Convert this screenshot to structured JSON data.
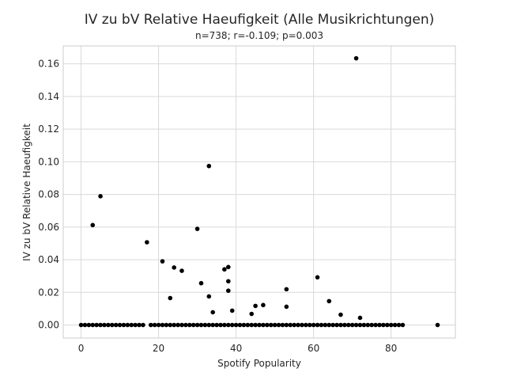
{
  "chart_data": {
    "type": "scatter",
    "title": "IV zu bV Relative Haeufigkeit (Alle Musikrichtungen)",
    "subtitle": "n=738; r=-0.109; p=0.003",
    "xlabel": "Spotify Popularity",
    "ylabel": "IV zu bV Relative Haeufigkeit",
    "xlim": [
      -4.6,
      96.6
    ],
    "ylim": [
      -0.008,
      0.171
    ],
    "xticks": [
      0,
      20,
      40,
      60,
      80
    ],
    "xtick_labels": [
      "0",
      "20",
      "40",
      "60",
      "80"
    ],
    "yticks": [
      0.0,
      0.02,
      0.04,
      0.06,
      0.08,
      0.1,
      0.12,
      0.14,
      0.16
    ],
    "ytick_labels": [
      "0.00",
      "0.02",
      "0.04",
      "0.06",
      "0.08",
      "0.10",
      "0.12",
      "0.14",
      "0.16"
    ],
    "grid": true,
    "marker_color": "#000000",
    "points": [
      {
        "x": 0,
        "y": 0
      },
      {
        "x": 1,
        "y": 0
      },
      {
        "x": 2,
        "y": 0
      },
      {
        "x": 3,
        "y": 0
      },
      {
        "x": 4,
        "y": 0
      },
      {
        "x": 5,
        "y": 0
      },
      {
        "x": 6,
        "y": 0
      },
      {
        "x": 7,
        "y": 0
      },
      {
        "x": 8,
        "y": 0
      },
      {
        "x": 9,
        "y": 0
      },
      {
        "x": 10,
        "y": 0
      },
      {
        "x": 11,
        "y": 0
      },
      {
        "x": 12,
        "y": 0
      },
      {
        "x": 13,
        "y": 0
      },
      {
        "x": 14,
        "y": 0
      },
      {
        "x": 15,
        "y": 0
      },
      {
        "x": 16,
        "y": 0
      },
      {
        "x": 18,
        "y": 0
      },
      {
        "x": 19,
        "y": 0
      },
      {
        "x": 20,
        "y": 0
      },
      {
        "x": 21,
        "y": 0
      },
      {
        "x": 22,
        "y": 0
      },
      {
        "x": 23,
        "y": 0
      },
      {
        "x": 24,
        "y": 0
      },
      {
        "x": 25,
        "y": 0
      },
      {
        "x": 26,
        "y": 0
      },
      {
        "x": 27,
        "y": 0
      },
      {
        "x": 28,
        "y": 0
      },
      {
        "x": 29,
        "y": 0
      },
      {
        "x": 30,
        "y": 0
      },
      {
        "x": 31,
        "y": 0
      },
      {
        "x": 32,
        "y": 0
      },
      {
        "x": 33,
        "y": 0
      },
      {
        "x": 34,
        "y": 0
      },
      {
        "x": 35,
        "y": 0
      },
      {
        "x": 36,
        "y": 0
      },
      {
        "x": 37,
        "y": 0
      },
      {
        "x": 38,
        "y": 0
      },
      {
        "x": 39,
        "y": 0
      },
      {
        "x": 40,
        "y": 0
      },
      {
        "x": 41,
        "y": 0
      },
      {
        "x": 42,
        "y": 0
      },
      {
        "x": 43,
        "y": 0
      },
      {
        "x": 44,
        "y": 0
      },
      {
        "x": 45,
        "y": 0
      },
      {
        "x": 46,
        "y": 0
      },
      {
        "x": 47,
        "y": 0
      },
      {
        "x": 48,
        "y": 0
      },
      {
        "x": 49,
        "y": 0
      },
      {
        "x": 50,
        "y": 0
      },
      {
        "x": 51,
        "y": 0
      },
      {
        "x": 52,
        "y": 0
      },
      {
        "x": 53,
        "y": 0
      },
      {
        "x": 54,
        "y": 0
      },
      {
        "x": 55,
        "y": 0
      },
      {
        "x": 56,
        "y": 0
      },
      {
        "x": 57,
        "y": 0
      },
      {
        "x": 58,
        "y": 0
      },
      {
        "x": 59,
        "y": 0
      },
      {
        "x": 60,
        "y": 0
      },
      {
        "x": 61,
        "y": 0
      },
      {
        "x": 62,
        "y": 0
      },
      {
        "x": 63,
        "y": 0
      },
      {
        "x": 64,
        "y": 0
      },
      {
        "x": 65,
        "y": 0
      },
      {
        "x": 66,
        "y": 0
      },
      {
        "x": 67,
        "y": 0
      },
      {
        "x": 68,
        "y": 0
      },
      {
        "x": 69,
        "y": 0
      },
      {
        "x": 70,
        "y": 0
      },
      {
        "x": 71,
        "y": 0
      },
      {
        "x": 72,
        "y": 0
      },
      {
        "x": 73,
        "y": 0
      },
      {
        "x": 74,
        "y": 0
      },
      {
        "x": 75,
        "y": 0
      },
      {
        "x": 76,
        "y": 0
      },
      {
        "x": 77,
        "y": 0
      },
      {
        "x": 78,
        "y": 0
      },
      {
        "x": 79,
        "y": 0
      },
      {
        "x": 80,
        "y": 0
      },
      {
        "x": 81,
        "y": 0
      },
      {
        "x": 82,
        "y": 0
      },
      {
        "x": 83,
        "y": 0
      },
      {
        "x": 92,
        "y": 0
      },
      {
        "x": 3,
        "y": 0.0612
      },
      {
        "x": 5,
        "y": 0.0789
      },
      {
        "x": 17,
        "y": 0.0507
      },
      {
        "x": 21,
        "y": 0.039
      },
      {
        "x": 23,
        "y": 0.0165
      },
      {
        "x": 24,
        "y": 0.0352
      },
      {
        "x": 26,
        "y": 0.0332
      },
      {
        "x": 30,
        "y": 0.0589
      },
      {
        "x": 31,
        "y": 0.0256
      },
      {
        "x": 33,
        "y": 0.0974
      },
      {
        "x": 33,
        "y": 0.0175
      },
      {
        "x": 34,
        "y": 0.0078
      },
      {
        "x": 37,
        "y": 0.0341
      },
      {
        "x": 38,
        "y": 0.0355
      },
      {
        "x": 38,
        "y": 0.0268
      },
      {
        "x": 38,
        "y": 0.021
      },
      {
        "x": 39,
        "y": 0.0088
      },
      {
        "x": 44,
        "y": 0.0068
      },
      {
        "x": 45,
        "y": 0.0117
      },
      {
        "x": 47,
        "y": 0.0122
      },
      {
        "x": 53,
        "y": 0.0219
      },
      {
        "x": 53,
        "y": 0.0112
      },
      {
        "x": 61,
        "y": 0.0292
      },
      {
        "x": 64,
        "y": 0.0146
      },
      {
        "x": 67,
        "y": 0.0063
      },
      {
        "x": 71,
        "y": 0.1634
      },
      {
        "x": 72,
        "y": 0.0044
      }
    ]
  }
}
